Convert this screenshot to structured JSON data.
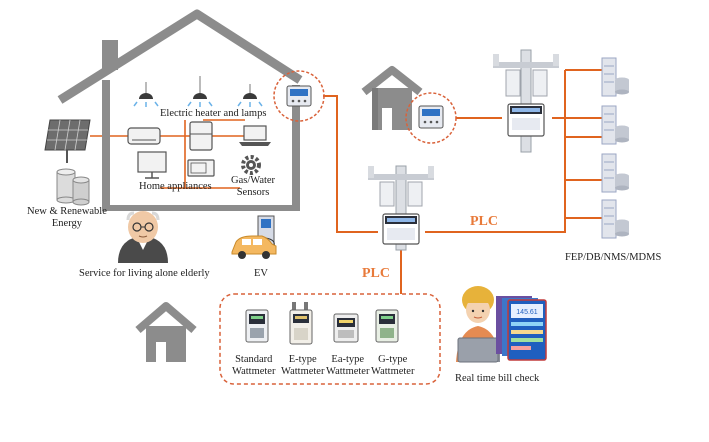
{
  "labels": {
    "electric_heater": "Electric heater and lamps",
    "home_appliances": "Home appliances",
    "sensors_line1": "Gas/Water",
    "sensors_line2": "Sensors",
    "renewable_line1": "New & Renewable",
    "renewable_line2": "Energy",
    "elderly": "Service for living alone elderly",
    "ev": "EV",
    "head_end": "FEP/DB/NMS/MDMS",
    "plc_upper": "PLC",
    "plc_lower": "PLC",
    "bill_check": "Real time bill check"
  },
  "wattmeters": [
    {
      "line1": "Standard",
      "line2": "Wattmeter"
    },
    {
      "line1": "E-type",
      "line2": "Wattmeter"
    },
    {
      "line1": "Ea-type",
      "line2": "Wattmeter"
    },
    {
      "line1": "G-type",
      "line2": "Wattmeter"
    }
  ],
  "colors": {
    "line": "#e0641f",
    "house": "#8c8c8c",
    "dashed": "#d9623a",
    "screen_blue": "#2f72c4",
    "server": "#9ba6c3"
  },
  "screen_text": "145.61"
}
